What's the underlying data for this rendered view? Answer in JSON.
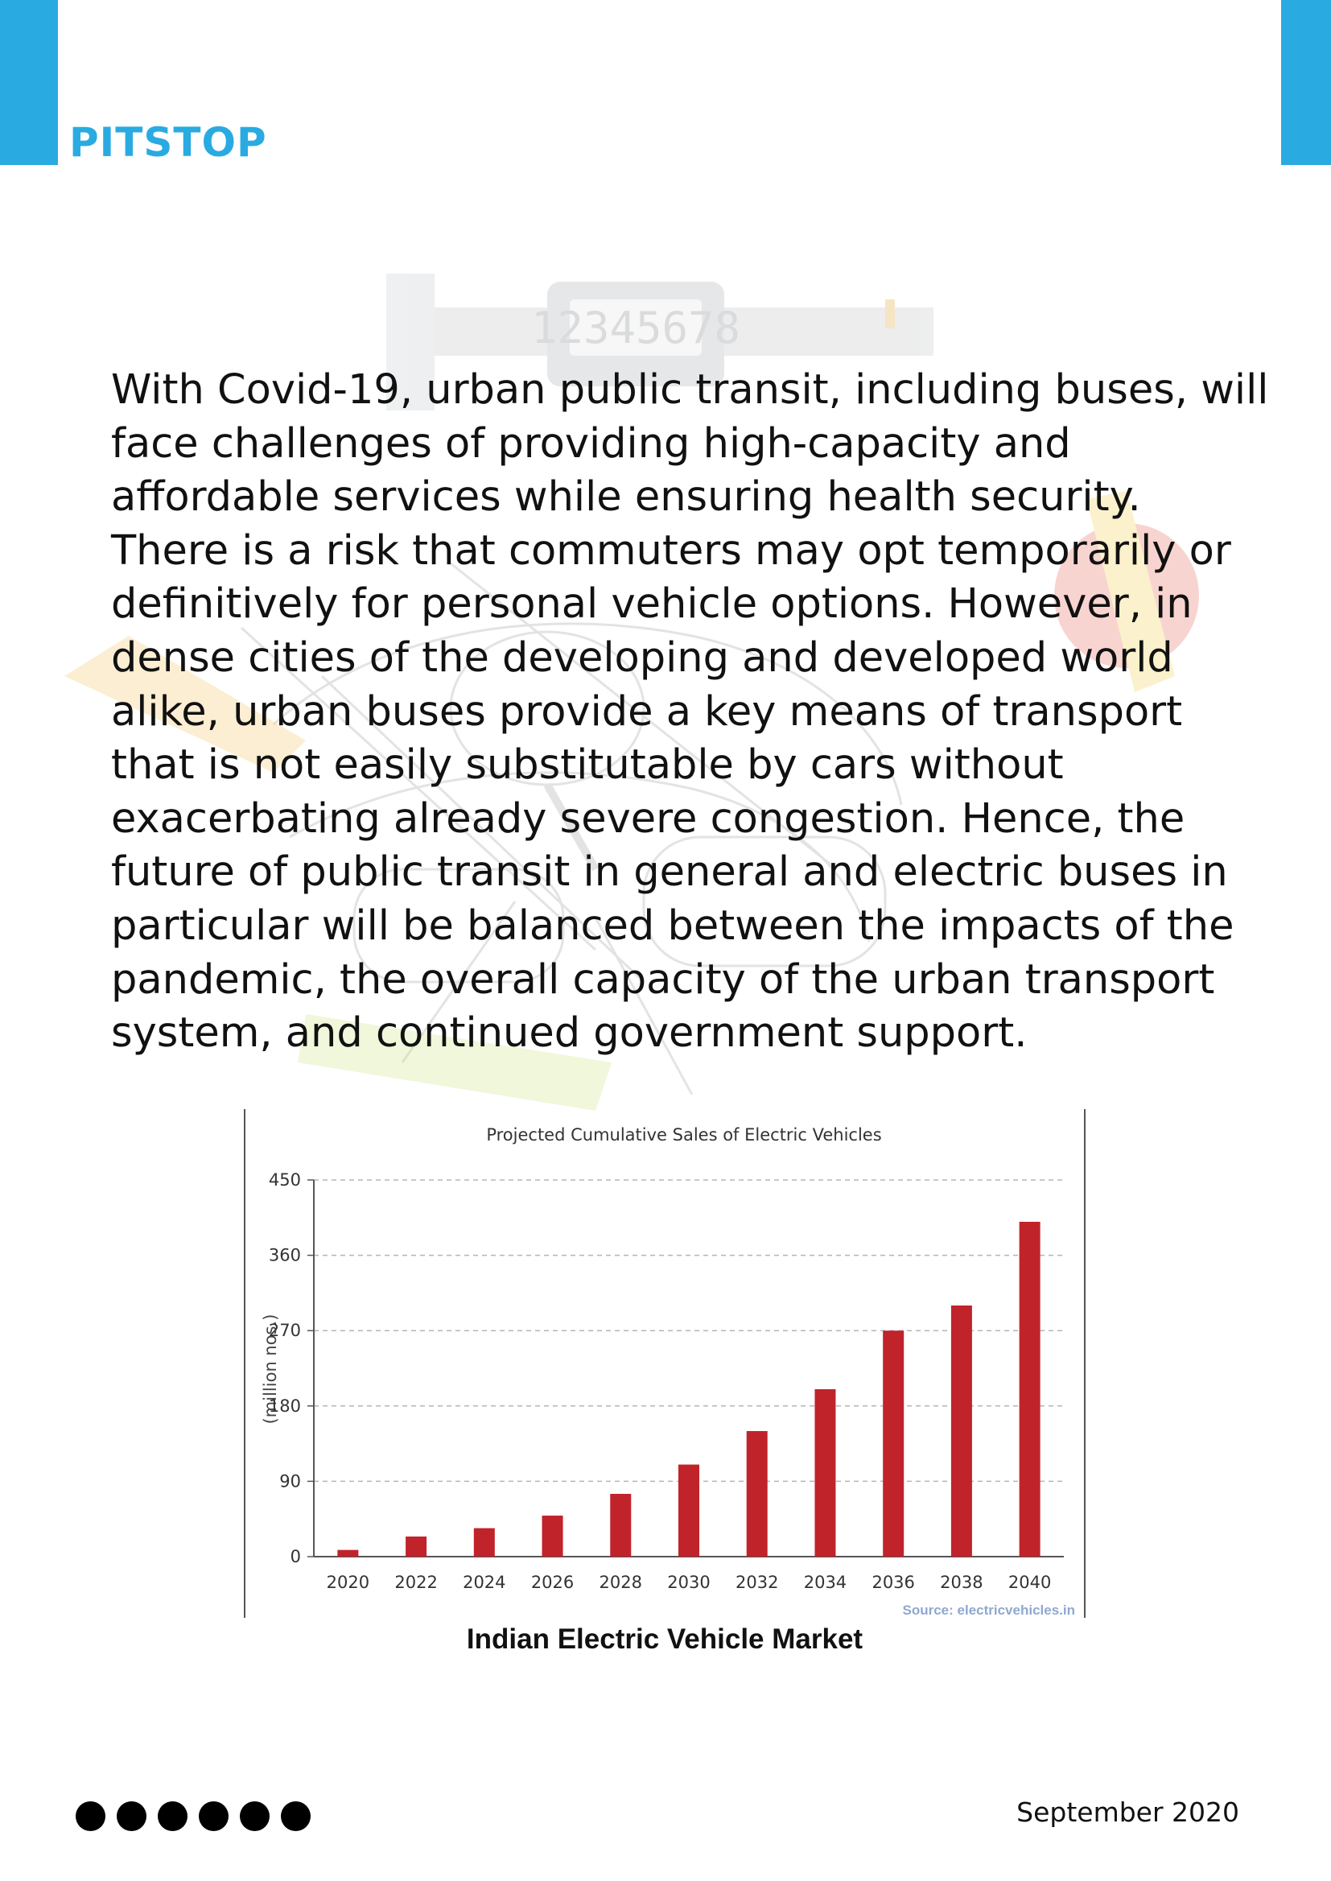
{
  "header": {
    "section_title": "PITSTOP",
    "accent_color": "#29ABE2"
  },
  "watermark": {
    "display_digits": "12345678",
    "icon": "measuring-tools-watermark"
  },
  "article": {
    "paragraph": "With Covid-19, urban public transit, including buses, will face challenges of providing high-capacity and affordable services while ensuring health security. There is a risk that commuters may opt temporarily or definitively for personal vehicle options. However, in dense cities of the developing and developed world alike, urban buses provide a key means of transport that is not easily substitutable by cars without exacerbating already severe congestion. Hence, the future of public transit in general and electric buses in particular will be balanced between the impacts of the pandemic, the overall capacity of the urban transport system, and continued government support."
  },
  "chart_data": {
    "type": "bar",
    "title": "Projected Cumulative Sales of Electric Vehicles",
    "xlabel": "",
    "ylabel": "(million nos.)",
    "categories": [
      "2020",
      "2022",
      "2024",
      "2026",
      "2028",
      "2030",
      "2032",
      "2034",
      "2036",
      "2038",
      "2040"
    ],
    "values": [
      8,
      24,
      34,
      49,
      75,
      110,
      150,
      200,
      270,
      300,
      400
    ],
    "ylim": [
      0,
      450
    ],
    "yticks": [
      0,
      90,
      180,
      270,
      360,
      450
    ],
    "ytick_labels": [
      "0",
      "90",
      "180",
      "270",
      "360",
      "450"
    ],
    "grid": true,
    "legend": "none",
    "bar_color": "#C1232B",
    "source": "Source: electricvehicles.in",
    "source_color": "#8FA8D0"
  },
  "figure": {
    "caption": "Indian Electric Vehicle Market"
  },
  "footer": {
    "dot_count": 6,
    "date": "September 2020"
  }
}
